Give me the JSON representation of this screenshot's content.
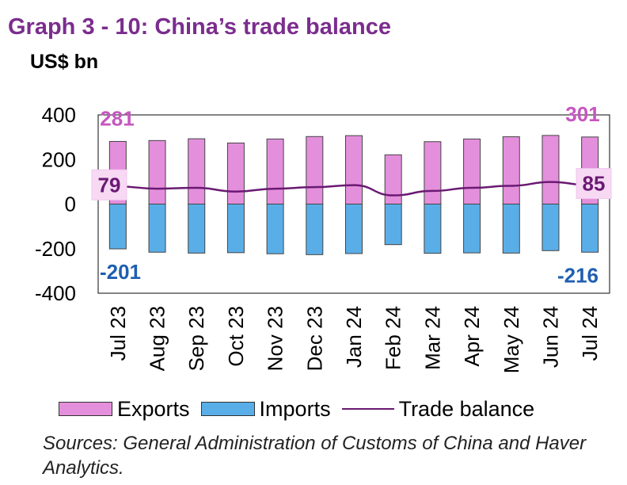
{
  "chart_data": {
    "type": "bar",
    "title": "Graph 3 - 10: China’s trade balance",
    "ylabel": "US$ bn",
    "ylim": [
      -400,
      400
    ],
    "yticks": [
      400,
      200,
      0,
      -200,
      -400
    ],
    "ytick_labels": [
      "400",
      "200",
      "0",
      "-200",
      "-400"
    ],
    "categories": [
      "Jul 23",
      "Aug 23",
      "Sep 23",
      "Oct 23",
      "Nov 23",
      "Dec 23",
      "Jan 24",
      "Feb 24",
      "Mar 24",
      "Apr 24",
      "May 24",
      "Jun 24",
      "Jul 24"
    ],
    "series": [
      {
        "name": "Exports",
        "kind": "bar",
        "color": "#e48fdc",
        "values": [
          281,
          285,
          293,
          274,
          292,
          303,
          307,
          221,
          280,
          292,
          302,
          308,
          301
        ]
      },
      {
        "name": "Imports",
        "kind": "bar",
        "color": "#5aaee8",
        "values": [
          -201,
          -216,
          -220,
          -218,
          -223,
          -227,
          -222,
          -182,
          -221,
          -219,
          -220,
          -209,
          -216
        ]
      },
      {
        "name": "Trade balance",
        "kind": "line",
        "color": "#6a1a72",
        "values": [
          79,
          69,
          73,
          56,
          69,
          76,
          85,
          39,
          59,
          73,
          82,
          99,
          85
        ]
      }
    ],
    "annotations": [
      {
        "text": "281",
        "series": "Exports",
        "index": 0,
        "color": "#c656c0"
      },
      {
        "text": "301",
        "series": "Exports",
        "index": 12,
        "color": "#c656c0"
      },
      {
        "text": "79",
        "series": "Trade balance",
        "index": 0,
        "color": "#6a1a72",
        "boxed": true
      },
      {
        "text": "85",
        "series": "Trade balance",
        "index": 12,
        "color": "#6a1a72",
        "boxed": true
      },
      {
        "text": "-201",
        "series": "Imports",
        "index": 0,
        "color": "#1f5fb0"
      },
      {
        "text": "-216",
        "series": "Imports",
        "index": 12,
        "color": "#1f5fb0"
      }
    ],
    "legend": [
      "Exports",
      "Imports",
      "Trade balance"
    ],
    "legend_position": "bottom"
  },
  "unit_label": "US$ bn",
  "source_note": "Sources: General Administration of Customs of China and Haver Analytics."
}
